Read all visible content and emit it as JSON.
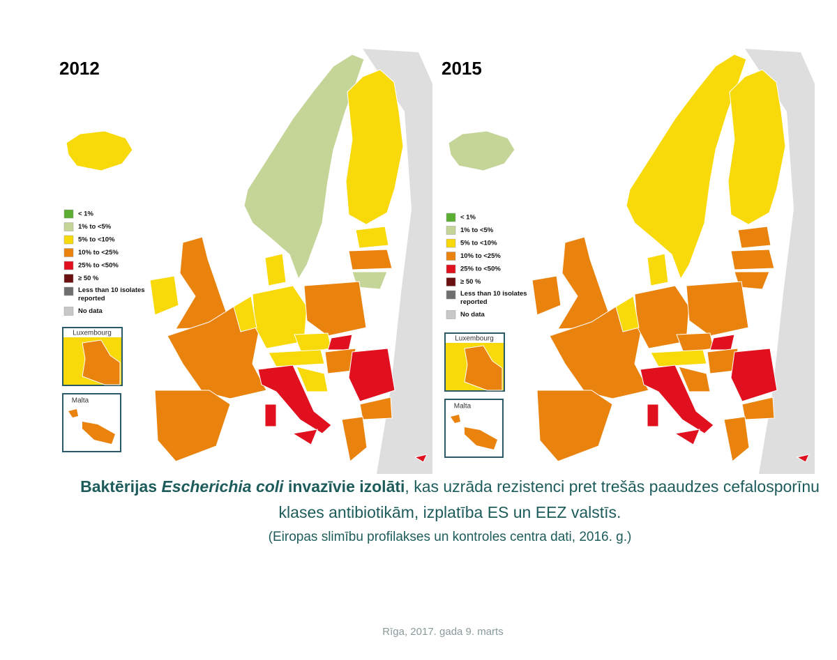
{
  "maps": [
    {
      "year": "2012"
    },
    {
      "year": "2015"
    }
  ],
  "legend": [
    {
      "label": "< 1%",
      "color": "#5aae32"
    },
    {
      "label": "1% to <5%",
      "color": "#c5d598"
    },
    {
      "label": "5% to <10%",
      "color": "#f8d90a"
    },
    {
      "label": "10% to <25%",
      "color": "#e9830e"
    },
    {
      "label": "25% to <50%",
      "color": "#e0101e"
    },
    {
      "label": "≥ 50 %",
      "color": "#6b1010"
    },
    {
      "label": "Less than 10 isolates reported",
      "color": "#6e6e6e"
    },
    {
      "label": "No data",
      "color": "#c8c8c8"
    }
  ],
  "insets": [
    "Luxembourg",
    "Malta"
  ],
  "caption": {
    "bold_1": "Baktērijas ",
    "italic": "Escherichia coli",
    "bold_2": " invazīvie izolāti",
    "text": ", kas uzrāda rezistenci pret trešās paaudzes cefalosporīnu klases antibiotikām, izplatība ES un EEZ valstīs.",
    "source": "(Eiropas slimību profilakses un kontroles centra dati, 2016. g.)"
  },
  "footer": "Rīga, 2017. gada 9. marts"
}
